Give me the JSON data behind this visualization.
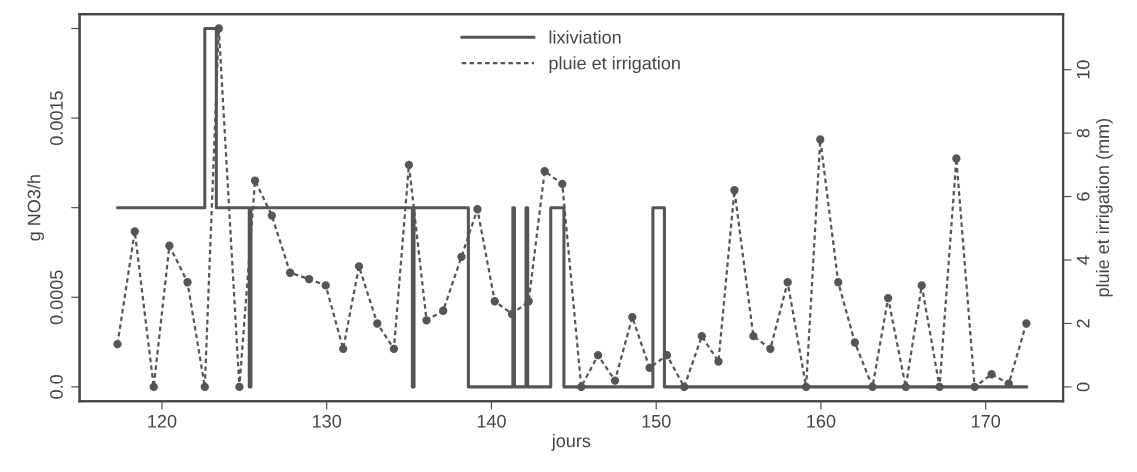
{
  "chart_data": {
    "type": "step",
    "xlabel": "jours",
    "ylabel": "g NO3/h",
    "y2label": "pluie et irrigation (mm)",
    "xlim": [
      115.0,
      174.7
    ],
    "xticks": [
      120,
      130,
      140,
      150,
      160,
      170
    ],
    "ylim": [
      -8e-05,
      0.00208
    ],
    "yticks": [
      {
        "value": 0,
        "label": "0.0"
      },
      0.0005,
      {
        "value": 0.001,
        "label": null
      },
      0.0015,
      {
        "value": 0.002,
        "label": null
      }
    ],
    "y2lim": [
      -0.45,
      11.75
    ],
    "y2ticks": [
      0,
      2,
      4,
      6,
      8,
      10
    ],
    "grid": false,
    "legend": "top",
    "series": [
      {
        "name": "lixiviation",
        "color": "#555555",
        "line_style": "solid",
        "marker": "none",
        "x": [
          117.3,
          122.6,
          123.3,
          125.3,
          125.4,
          135.2,
          135.3,
          138.6,
          141.3,
          141.4,
          142.1,
          142.2,
          143.6,
          144.4,
          149.8,
          150.5,
          172.5
        ],
        "values": [
          0.001,
          0.002,
          0.001,
          0,
          0.001,
          0,
          0.001,
          0,
          0.001,
          0,
          0.001,
          0,
          0.001,
          0,
          0.001,
          0,
          0
        ]
      },
      {
        "name": "pluie et irrigation",
        "type": "line",
        "axis": "y2",
        "color": "#555555",
        "line_style": "dotted",
        "marker": "circle",
        "x": [
          117.3,
          118.35,
          119.5,
          120.45,
          121.55,
          122.6,
          123.45,
          124.7,
          125.65,
          126.67,
          127.78,
          128.93,
          129.94,
          131.0,
          131.96,
          133.07,
          134.08,
          134.99,
          136.06,
          137.07,
          138.18,
          139.15,
          140.2,
          141.25,
          142.26,
          143.23,
          144.3,
          145.45,
          146.47,
          147.5,
          148.55,
          149.6,
          150.65,
          151.7,
          152.77,
          153.78,
          154.75,
          155.9,
          156.93,
          157.98,
          159.1,
          159.96,
          161.05,
          162.06,
          163.13,
          164.08,
          165.15,
          166.12,
          167.2,
          168.22,
          169.33,
          170.36,
          171.4,
          172.47
        ],
        "values": [
          1.35,
          4.9,
          0,
          4.45,
          3.3,
          0,
          11.3,
          0,
          6.5,
          5.4,
          3.6,
          3.4,
          3.2,
          1.2,
          3.8,
          2.0,
          1.2,
          7.0,
          2.1,
          2.4,
          4.1,
          5.6,
          2.7,
          2.3,
          2.7,
          6.8,
          6.4,
          0,
          1.0,
          0.2,
          2.2,
          0.6,
          1.0,
          0,
          1.6,
          0.8,
          6.2,
          1.6,
          1.2,
          3.3,
          0,
          7.8,
          3.3,
          1.4,
          0,
          2.8,
          0,
          3.2,
          0,
          7.2,
          0,
          0.4,
          0.1,
          2.0
        ]
      }
    ]
  }
}
